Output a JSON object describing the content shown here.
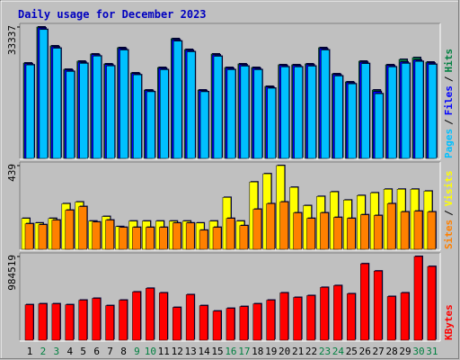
{
  "chart_data": [
    {
      "type": "bar",
      "title": "Daily usage for December 2023",
      "ylim": [
        0,
        33337
      ],
      "yticks": [
        33337
      ],
      "separator": "/",
      "series": [
        {
          "name": "Hits",
          "color": "#008040",
          "values": [
            24200,
            33337,
            28540,
            22600,
            24660,
            26490,
            23975,
            28085,
            21690,
            17350,
            23060,
            30370,
            27630,
            17350,
            26490,
            23060,
            23975,
            23060,
            18270,
            23750,
            23750,
            23975,
            28085,
            21460,
            19410,
            24660,
            17350,
            23750,
            25100,
            25570,
            24430
          ]
        },
        {
          "name": "Files",
          "color": "#0000ff",
          "values": [
            24000,
            33100,
            28300,
            22400,
            24400,
            26300,
            23800,
            27850,
            21500,
            17200,
            22850,
            30100,
            27400,
            17200,
            26250,
            22850,
            23750,
            22850,
            18100,
            23550,
            23550,
            23750,
            27850,
            21250,
            19200,
            24400,
            16950,
            23550,
            24450,
            24950,
            24200
          ]
        },
        {
          "name": "Pages",
          "color": "#00c0ff",
          "values": [
            23700,
            32700,
            27950,
            22050,
            24100,
            25950,
            23450,
            27500,
            21200,
            16900,
            22500,
            29750,
            27050,
            16900,
            25900,
            22500,
            23400,
            22500,
            17800,
            23200,
            23200,
            23400,
            27500,
            20900,
            18900,
            24050,
            16400,
            23200,
            24100,
            24600,
            23850
          ]
        }
      ]
    },
    {
      "type": "bar",
      "ylim": [
        0,
        439
      ],
      "yticks": [
        439
      ],
      "separator": "/",
      "series": [
        {
          "name": "Visits",
          "color": "#ffff00",
          "values": [
            162,
            138,
            162,
            239,
            248,
            148,
            172,
            119,
            148,
            148,
            148,
            148,
            148,
            138,
            148,
            272,
            148,
            353,
            396,
            439,
            325,
            229,
            277,
            301,
            258,
            282,
            296,
            315,
            315,
            315,
            305
          ]
        },
        {
          "name": "Sites",
          "color": "#ff8000",
          "values": [
            134,
            129,
            153,
            205,
            224,
            143,
            153,
            115,
            115,
            115,
            115,
            138,
            138,
            100,
            115,
            162,
            124,
            210,
            239,
            248,
            191,
            162,
            191,
            167,
            162,
            181,
            177,
            239,
            196,
            200,
            196
          ]
        }
      ]
    },
    {
      "type": "bar",
      "ylim": [
        0,
        984519
      ],
      "yticks": [
        984519
      ],
      "categories": [
        "1",
        "2",
        "3",
        "4",
        "5",
        "6",
        "7",
        "8",
        "9",
        "10",
        "11",
        "12",
        "13",
        "14",
        "15",
        "16",
        "17",
        "18",
        "19",
        "20",
        "21",
        "22",
        "23",
        "24",
        "25",
        "26",
        "27",
        "28",
        "29",
        "30",
        "31"
      ],
      "category_colors": [
        "#000000",
        "#008040",
        "#008040",
        "#000000",
        "#000000",
        "#000000",
        "#000000",
        "#000000",
        "#008040",
        "#008040",
        "#000000",
        "#000000",
        "#000000",
        "#000000",
        "#000000",
        "#008040",
        "#008040",
        "#000000",
        "#000000",
        "#000000",
        "#000000",
        "#000000",
        "#008040",
        "#008040",
        "#000000",
        "#000000",
        "#000000",
        "#000000",
        "#000000",
        "#008040",
        "#008040"
      ],
      "series": [
        {
          "name": "KBytes",
          "color": "#ff0000",
          "values": [
            417300,
            428000,
            428000,
            417300,
            470800,
            492200,
            406600,
            470800,
            567200,
            610000,
            556500,
            385200,
            535100,
            406600,
            342400,
            374500,
            395900,
            428000,
            470800,
            556500,
            502900,
            524400,
            620700,
            642000,
            545800,
            898900,
            813300,
            513600,
            556500,
            984519,
            866800
          ]
        }
      ]
    }
  ]
}
